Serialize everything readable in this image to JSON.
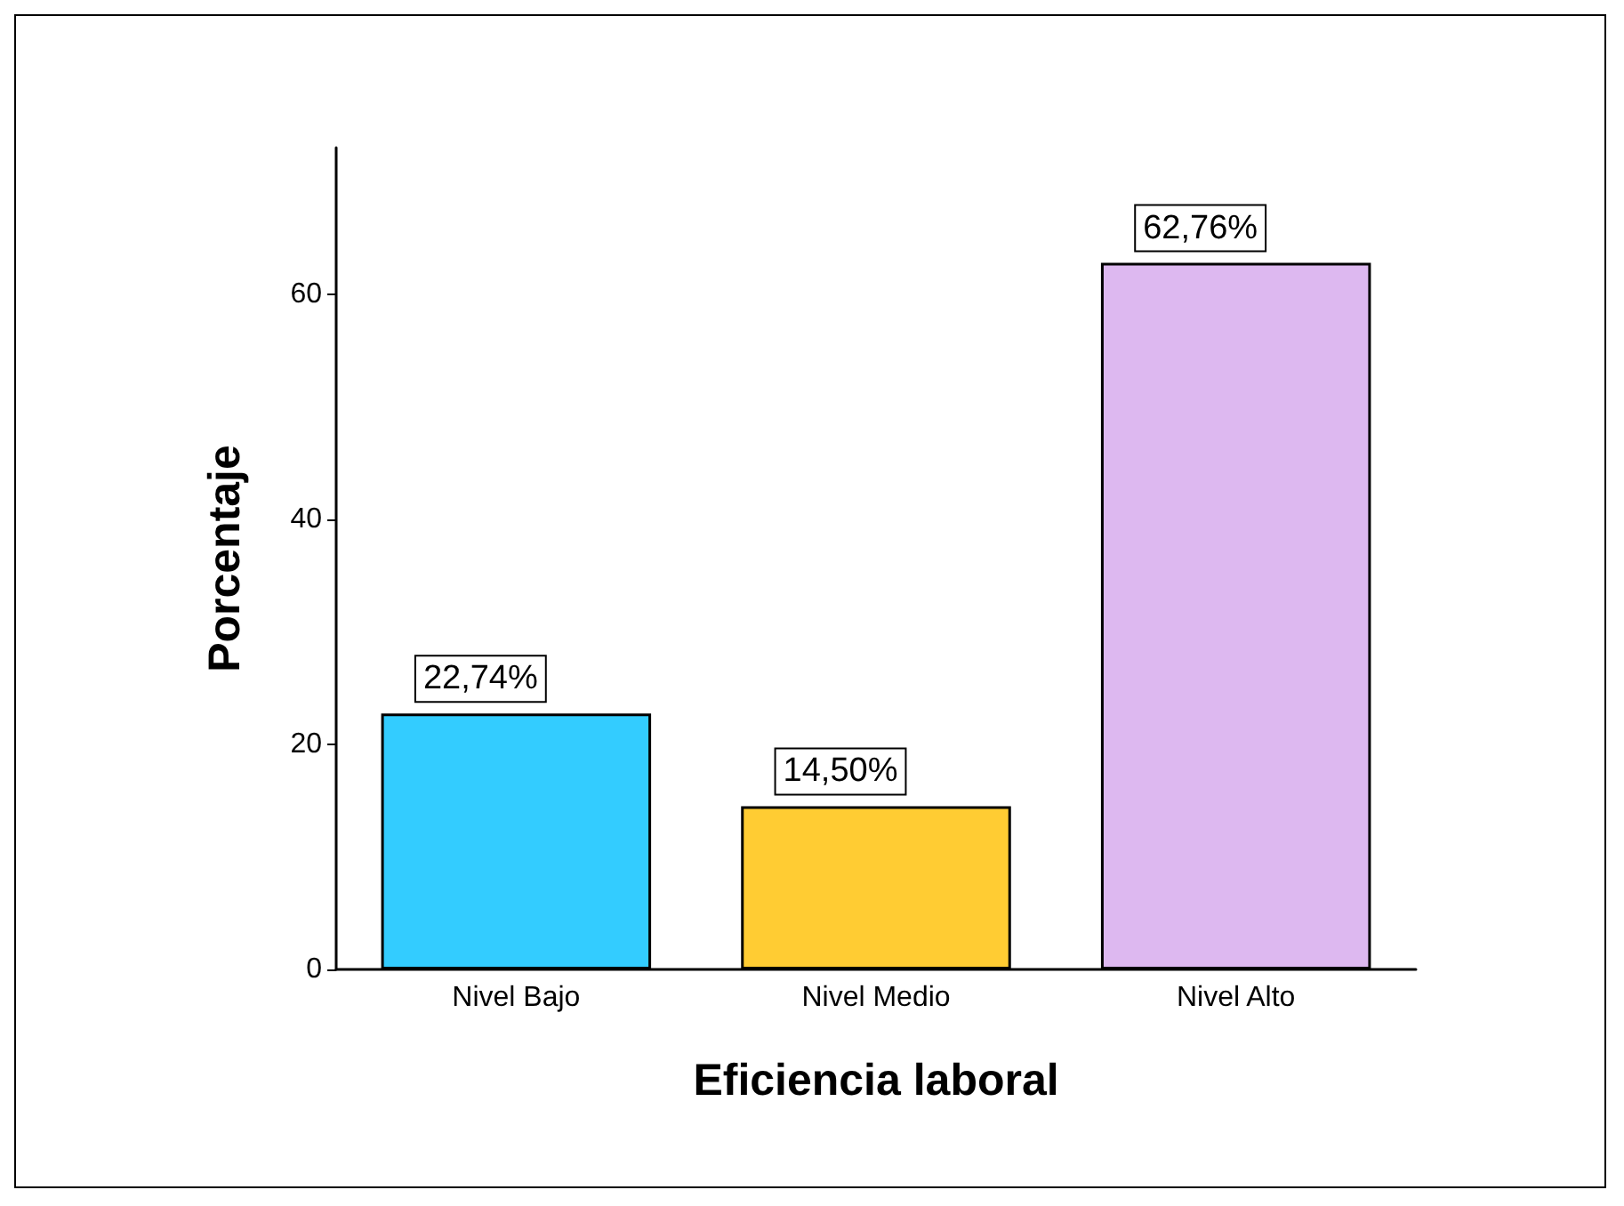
{
  "chart_data": {
    "type": "bar",
    "xlabel": "Eficiencia laboral",
    "ylabel": "Porcentaje",
    "categories": [
      "Nivel Bajo",
      "Nivel Medio",
      "Nivel Alto"
    ],
    "values": [
      22.74,
      14.5,
      62.76
    ],
    "colors": [
      "#33ccff",
      "#ffcc33",
      "#ddb8f0"
    ],
    "value_labels": [
      "22,74%",
      "14,50%",
      "62,76%"
    ],
    "ylim": [
      0,
      73
    ],
    "yticks": [
      0,
      20,
      40,
      60
    ]
  }
}
